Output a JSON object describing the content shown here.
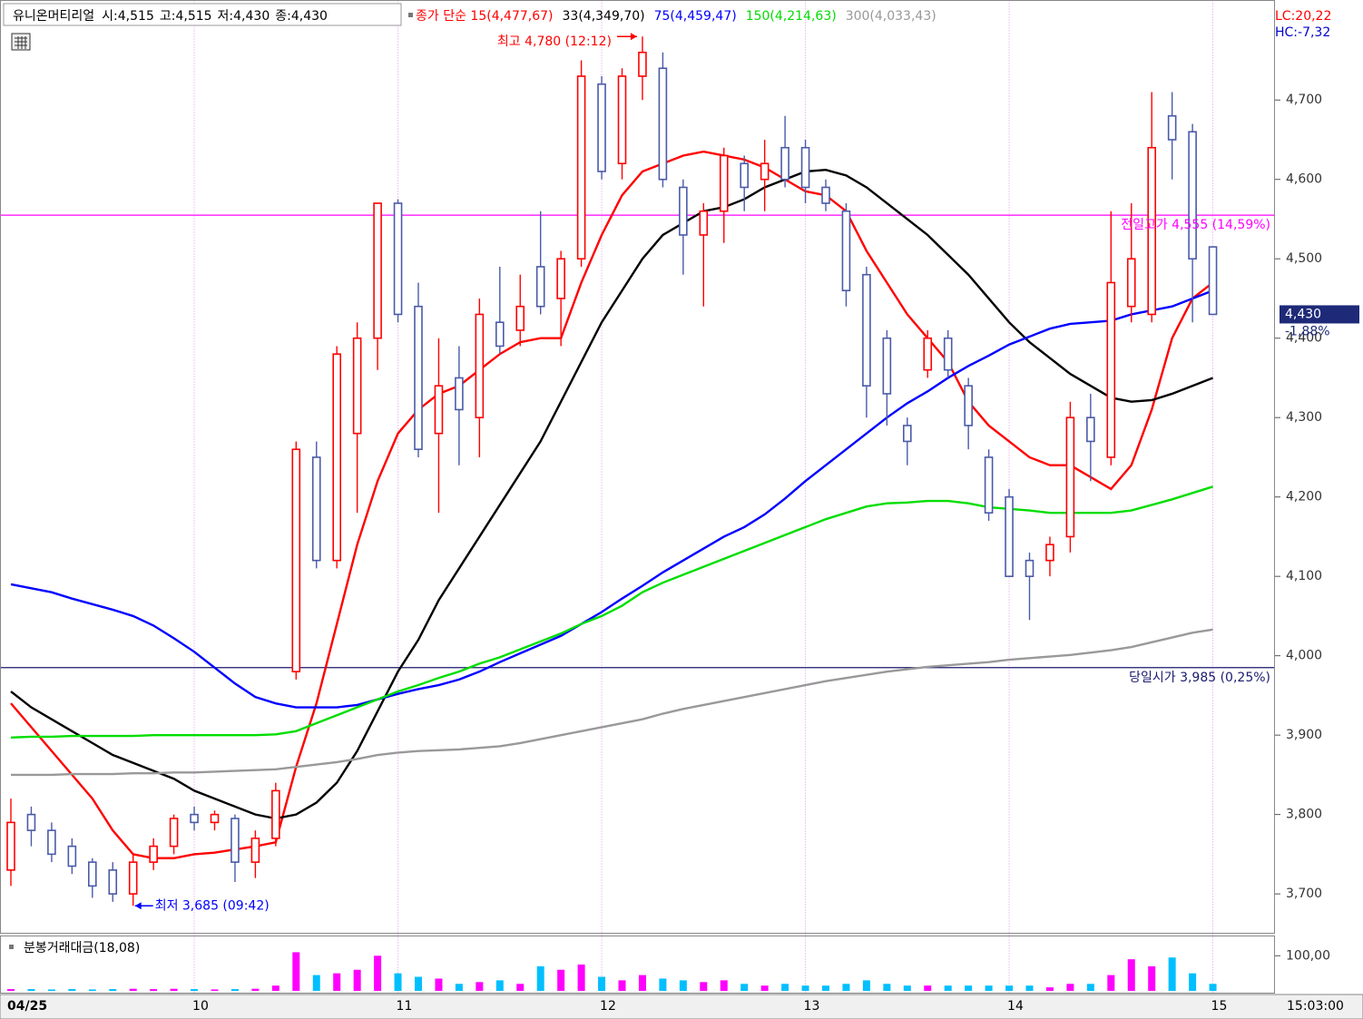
{
  "chart_data": [
    {
      "type": "candlestick",
      "title": "유니온머티리얼",
      "header": [
        "시:4,515",
        "고:4,515",
        "저:4,430",
        "종:4,430"
      ],
      "side_labels": [
        "LC:20,22",
        "HC:-7,32"
      ],
      "categories": [
        "04/25",
        null,
        null,
        null,
        null,
        null,
        null,
        null,
        null,
        "10",
        null,
        null,
        null,
        null,
        null,
        null,
        null,
        null,
        null,
        "11",
        null,
        null,
        null,
        null,
        null,
        null,
        null,
        null,
        null,
        "12",
        null,
        null,
        null,
        null,
        null,
        null,
        null,
        null,
        null,
        "13",
        null,
        null,
        null,
        null,
        null,
        null,
        null,
        null,
        null,
        "14",
        null,
        null,
        null,
        null,
        null,
        null,
        null,
        null,
        null,
        "15"
      ],
      "open": [
        3730,
        3800,
        3780,
        3760,
        3740,
        3730,
        3700,
        3740,
        3760,
        3800,
        3790,
        3795,
        3740,
        3770,
        3980,
        4250,
        4120,
        4280,
        4400,
        4570,
        4440,
        4280,
        4350,
        4300,
        4420,
        4410,
        4490,
        4450,
        4500,
        4720,
        4620,
        4730,
        4740,
        4590,
        4530,
        4560,
        4620,
        4600,
        4640,
        4640,
        4590,
        4560,
        4480,
        4400,
        4290,
        4360,
        4400,
        4340,
        4250,
        4200,
        4120,
        4120,
        4150,
        4300,
        4250,
        4440,
        4430,
        4680,
        4660,
        4515
      ],
      "high": [
        3820,
        3810,
        3790,
        3770,
        3745,
        3740,
        3750,
        3770,
        3800,
        3810,
        3805,
        3800,
        3780,
        3840,
        4270,
        4270,
        4390,
        4420,
        4570,
        4575,
        4470,
        4400,
        4390,
        4450,
        4490,
        4480,
        4560,
        4510,
        4750,
        4730,
        4740,
        4780,
        4760,
        4600,
        4570,
        4640,
        4630,
        4650,
        4680,
        4650,
        4600,
        4570,
        4490,
        4410,
        4300,
        4410,
        4410,
        4350,
        4260,
        4210,
        4130,
        4150,
        4320,
        4330,
        4560,
        4570,
        4710,
        4710,
        4670,
        4515
      ],
      "low": [
        3710,
        3760,
        3740,
        3725,
        3695,
        3690,
        3685,
        3730,
        3750,
        3780,
        3780,
        3715,
        3720,
        3760,
        3970,
        4110,
        4110,
        4180,
        4360,
        4420,
        4250,
        4180,
        4240,
        4250,
        4380,
        4390,
        4430,
        4390,
        4490,
        4600,
        4600,
        4700,
        4590,
        4480,
        4440,
        4520,
        4560,
        4560,
        4590,
        4570,
        4560,
        4440,
        4300,
        4290,
        4240,
        4350,
        4350,
        4260,
        4170,
        4100,
        4045,
        4100,
        4130,
        4220,
        4240,
        4420,
        4420,
        4600,
        4420,
        4430
      ],
      "close": [
        3790,
        3780,
        3750,
        3735,
        3710,
        3700,
        3740,
        3760,
        3795,
        3790,
        3800,
        3740,
        3770,
        3830,
        4260,
        4120,
        4380,
        4400,
        4570,
        4430,
        4260,
        4340,
        4310,
        4430,
        4390,
        4440,
        4440,
        4500,
        4730,
        4610,
        4730,
        4760,
        4600,
        4530,
        4560,
        4630,
        4590,
        4620,
        4600,
        4590,
        4570,
        4460,
        4340,
        4330,
        4270,
        4400,
        4360,
        4290,
        4180,
        4100,
        4100,
        4140,
        4300,
        4270,
        4470,
        4500,
        4640,
        4650,
        4500,
        4430
      ],
      "up_color": "#ff0000",
      "down_color": "#4a5aa8",
      "series": [
        {
          "name": "종가 단순 15(4,477,67)",
          "color": "#ff0000",
          "values": [
            3940,
            3910,
            3880,
            3850,
            3820,
            3780,
            3750,
            3745,
            3745,
            3750,
            3752,
            3756,
            3760,
            3765,
            3860,
            3940,
            4040,
            4140,
            4220,
            4280,
            4310,
            4330,
            4340,
            4360,
            4380,
            4395,
            4400,
            4400,
            4470,
            4530,
            4580,
            4610,
            4620,
            4630,
            4635,
            4630,
            4625,
            4615,
            4600,
            4585,
            4580,
            4560,
            4510,
            4470,
            4430,
            4400,
            4370,
            4320,
            4290,
            4270,
            4250,
            4240,
            4240,
            4225,
            4210,
            4240,
            4310,
            4400,
            4450,
            4470
          ]
        },
        {
          "name": "33(4,349,70)",
          "color": "#000000",
          "values": [
            3955,
            3935,
            3920,
            3905,
            3890,
            3875,
            3865,
            3855,
            3845,
            3830,
            3820,
            3810,
            3800,
            3795,
            3800,
            3815,
            3840,
            3880,
            3930,
            3980,
            4020,
            4070,
            4110,
            4150,
            4190,
            4230,
            4270,
            4320,
            4370,
            4420,
            4460,
            4500,
            4530,
            4545,
            4560,
            4565,
            4575,
            4590,
            4600,
            4610,
            4612,
            4605,
            4590,
            4570,
            4550,
            4530,
            4505,
            4480,
            4450,
            4420,
            4395,
            4375,
            4355,
            4340,
            4325,
            4320,
            4322,
            4330,
            4340,
            4350
          ]
        },
        {
          "name": "75(4,459,47)",
          "color": "#0000ff",
          "values": [
            4090,
            4085,
            4080,
            4072,
            4065,
            4058,
            4050,
            4038,
            4022,
            4005,
            3985,
            3965,
            3948,
            3940,
            3935,
            3935,
            3935,
            3938,
            3945,
            3952,
            3958,
            3963,
            3970,
            3980,
            3992,
            4003,
            4014,
            4025,
            4040,
            4055,
            4072,
            4088,
            4105,
            4120,
            4135,
            4150,
            4162,
            4178,
            4198,
            4220,
            4240,
            4260,
            4280,
            4300,
            4318,
            4333,
            4350,
            4365,
            4378,
            4392,
            4402,
            4412,
            4418,
            4420,
            4422,
            4430,
            4435,
            4440,
            4450,
            4460
          ]
        },
        {
          "name": "150(4,214,63)",
          "color": "#00dd00",
          "values": [
            3897,
            3898,
            3898,
            3899,
            3899,
            3899,
            3899,
            3900,
            3900,
            3900,
            3900,
            3900,
            3900,
            3901,
            3905,
            3915,
            3925,
            3935,
            3945,
            3955,
            3963,
            3972,
            3980,
            3990,
            3998,
            4008,
            4018,
            4028,
            4040,
            4050,
            4063,
            4080,
            4092,
            4102,
            4112,
            4122,
            4132,
            4142,
            4152,
            4162,
            4172,
            4180,
            4188,
            4192,
            4193,
            4195,
            4195,
            4192,
            4187,
            4185,
            4183,
            4180,
            4180,
            4180,
            4180,
            4183,
            4190,
            4197,
            4205,
            4213
          ]
        },
        {
          "name": "300(4,033,43)",
          "color": "#999999",
          "values": [
            3850,
            3850,
            3850,
            3851,
            3851,
            3851,
            3852,
            3852,
            3853,
            3853,
            3854,
            3855,
            3856,
            3857,
            3860,
            3863,
            3866,
            3870,
            3875,
            3878,
            3880,
            3881,
            3882,
            3884,
            3886,
            3890,
            3895,
            3900,
            3905,
            3910,
            3915,
            3920,
            3927,
            3933,
            3938,
            3943,
            3948,
            3953,
            3958,
            3963,
            3968,
            3972,
            3976,
            3980,
            3983,
            3986,
            3988,
            3990,
            3992,
            3995,
            3997,
            3999,
            4001,
            4004,
            4007,
            4011,
            4017,
            4023,
            4029,
            4033
          ]
        }
      ],
      "ylim": [
        3651,
        4826
      ],
      "yticks": [
        {
          "value": 3700,
          "label": "3,700"
        },
        {
          "value": 3800,
          "label": "3,800"
        },
        {
          "value": 3900,
          "label": "3,900"
        },
        {
          "value": 4000,
          "label": "4,000"
        },
        {
          "value": 4100,
          "label": "4,100"
        },
        {
          "value": 4200,
          "label": "4,200"
        },
        {
          "value": 4300,
          "label": "4,300"
        },
        {
          "value": 4400,
          "label": "4,400"
        },
        {
          "value": 4500,
          "label": "4,500"
        },
        {
          "value": 4600,
          "label": "4,600"
        },
        {
          "value": 4700,
          "label": "4,700"
        }
      ],
      "hlines": [
        {
          "value": 4555,
          "label": "전일고가 4,555 (14,59%)",
          "color": "#ff00ff"
        },
        {
          "value": 3985,
          "label": "당일시가 3,985 (0,25%)",
          "color": "#1a1a6e"
        }
      ],
      "extremes": [
        {
          "value": 4780,
          "label": "최고 4,780 (12:12)",
          "color": "#ff0000",
          "index": 31
        },
        {
          "value": 3685,
          "label": "최저 3,685 (09:42)",
          "color": "#0000ff",
          "index": 6
        }
      ],
      "last_price": {
        "value": 4430,
        "label": "4,430",
        "change": "-1,88%"
      },
      "time": "15:03:00"
    },
    {
      "type": "bar",
      "title": "분봉거래대금(18,08)",
      "values": [
        5,
        5,
        4,
        5,
        4,
        5,
        6,
        5,
        6,
        5,
        4,
        5,
        6,
        15,
        110,
        45,
        50,
        60,
        100,
        50,
        40,
        35,
        20,
        25,
        30,
        20,
        70,
        60,
        75,
        40,
        30,
        45,
        35,
        30,
        25,
        30,
        20,
        15,
        20,
        15,
        15,
        20,
        30,
        20,
        15,
        15,
        15,
        15,
        15,
        15,
        15,
        10,
        20,
        20,
        45,
        90,
        70,
        95,
        50,
        20
      ],
      "ylim": [
        0,
        155
      ],
      "yticks": [
        {
          "value": 100,
          "label": "100,00"
        }
      ]
    }
  ]
}
